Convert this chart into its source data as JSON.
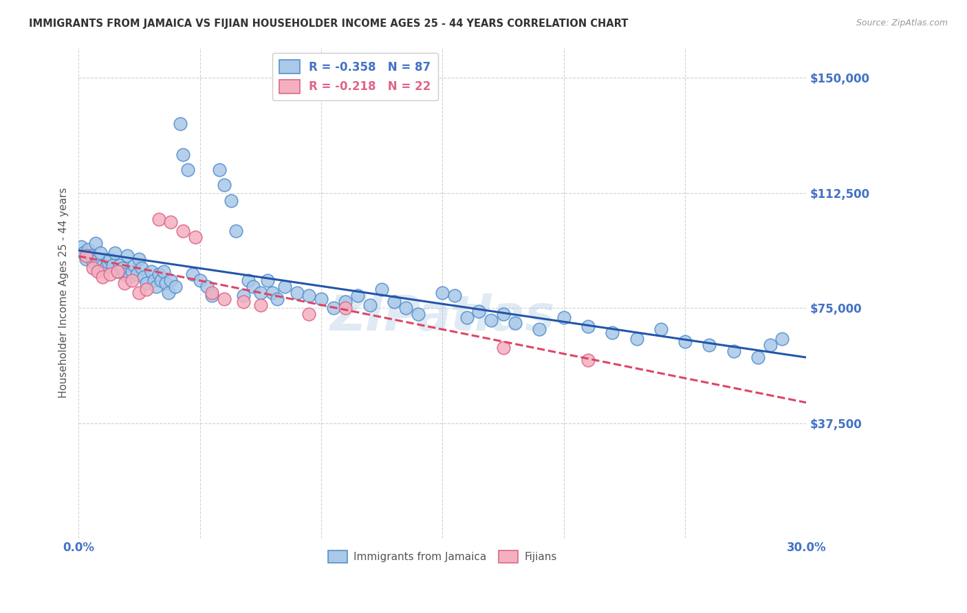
{
  "title": "IMMIGRANTS FROM JAMAICA VS FIJIAN HOUSEHOLDER INCOME AGES 25 - 44 YEARS CORRELATION CHART",
  "source": "Source: ZipAtlas.com",
  "ylabel": "Householder Income Ages 25 - 44 years",
  "xlim": [
    0.0,
    0.3
  ],
  "ylim": [
    0,
    160000
  ],
  "xticks": [
    0.0,
    0.05,
    0.1,
    0.15,
    0.2,
    0.25,
    0.3
  ],
  "xticklabels": [
    "0.0%",
    "",
    "",
    "",
    "",
    "",
    "30.0%"
  ],
  "ytick_positions": [
    0,
    37500,
    75000,
    112500,
    150000
  ],
  "ytick_labels": [
    "",
    "$37,500",
    "$75,000",
    "$112,500",
    "$150,000"
  ],
  "background_color": "#ffffff",
  "grid_color": "#cccccc",
  "jamaica_color": "#aac8e8",
  "jamaica_edge_color": "#5590cc",
  "fijian_color": "#f5b0c0",
  "fijian_edge_color": "#dd6688",
  "jamaica_line_color": "#2255aa",
  "fijian_line_color": "#dd4466",
  "jamaica_R": -0.358,
  "jamaica_N": 87,
  "fijian_R": -0.218,
  "fijian_N": 22,
  "axis_color": "#4472c4",
  "tick_label_color": "#4472c4",
  "legend_label_jamaica": "Immigrants from Jamaica",
  "legend_label_fijian": "Fijians",
  "watermark": "ZIPatlas",
  "jamaica_x": [
    0.001,
    0.002,
    0.003,
    0.004,
    0.005,
    0.006,
    0.007,
    0.008,
    0.009,
    0.01,
    0.011,
    0.012,
    0.013,
    0.014,
    0.015,
    0.016,
    0.017,
    0.018,
    0.019,
    0.02,
    0.021,
    0.022,
    0.023,
    0.024,
    0.025,
    0.026,
    0.027,
    0.028,
    0.03,
    0.031,
    0.032,
    0.033,
    0.034,
    0.035,
    0.036,
    0.037,
    0.038,
    0.04,
    0.042,
    0.043,
    0.045,
    0.047,
    0.05,
    0.053,
    0.055,
    0.058,
    0.06,
    0.063,
    0.065,
    0.068,
    0.07,
    0.072,
    0.075,
    0.078,
    0.08,
    0.082,
    0.085,
    0.09,
    0.095,
    0.1,
    0.105,
    0.11,
    0.115,
    0.12,
    0.125,
    0.13,
    0.135,
    0.14,
    0.15,
    0.155,
    0.16,
    0.165,
    0.17,
    0.175,
    0.18,
    0.19,
    0.2,
    0.21,
    0.22,
    0.23,
    0.24,
    0.25,
    0.26,
    0.27,
    0.28,
    0.285,
    0.29
  ],
  "jamaica_y": [
    95000,
    93000,
    91000,
    94000,
    92000,
    90000,
    96000,
    91000,
    93000,
    89000,
    88000,
    90000,
    91000,
    89000,
    93000,
    87000,
    89000,
    88000,
    86000,
    92000,
    85000,
    87000,
    89000,
    86000,
    91000,
    88000,
    85000,
    83000,
    87000,
    84000,
    82000,
    86000,
    84000,
    87000,
    83000,
    80000,
    84000,
    82000,
    135000,
    125000,
    120000,
    86000,
    84000,
    82000,
    79000,
    120000,
    115000,
    110000,
    100000,
    79000,
    84000,
    82000,
    80000,
    84000,
    80000,
    78000,
    82000,
    80000,
    79000,
    78000,
    75000,
    77000,
    79000,
    76000,
    81000,
    77000,
    75000,
    73000,
    80000,
    79000,
    72000,
    74000,
    71000,
    73000,
    70000,
    68000,
    72000,
    69000,
    67000,
    65000,
    68000,
    64000,
    63000,
    61000,
    59000,
    63000,
    65000
  ],
  "fijian_x": [
    0.003,
    0.006,
    0.008,
    0.01,
    0.013,
    0.016,
    0.019,
    0.022,
    0.025,
    0.028,
    0.033,
    0.038,
    0.043,
    0.048,
    0.055,
    0.06,
    0.068,
    0.075,
    0.095,
    0.11,
    0.175,
    0.21
  ],
  "fijian_y": [
    92000,
    88000,
    87000,
    85000,
    86000,
    87000,
    83000,
    84000,
    80000,
    81000,
    104000,
    103000,
    100000,
    98000,
    80000,
    78000,
    77000,
    76000,
    73000,
    75000,
    62000,
    58000
  ]
}
